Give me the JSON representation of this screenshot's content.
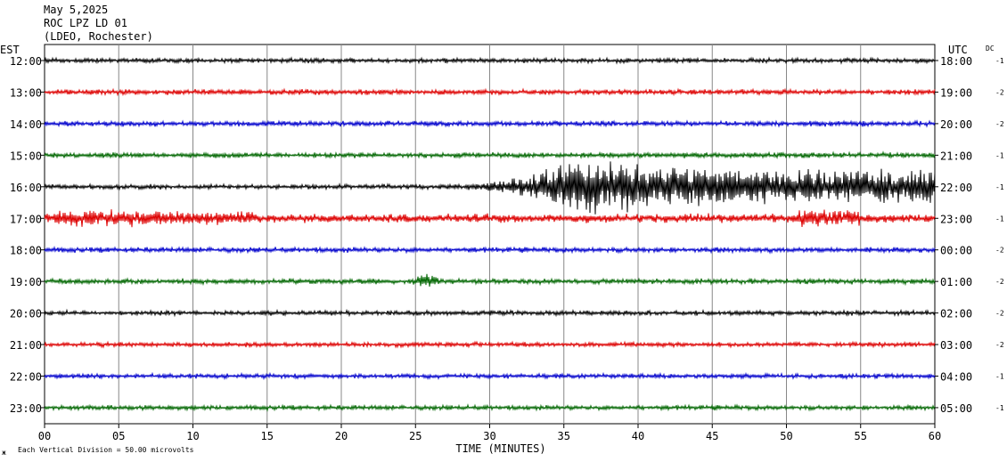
{
  "header": {
    "date": "May 5,2025",
    "station": "ROC LPZ LD 01",
    "network": "(LDEO, Rochester)"
  },
  "left_axis_title": "EST",
  "right_axis_title": "UTC",
  "dc_title": "DC",
  "footer": {
    "scale_note": "Each Vertical Division =   50.00 microvolts",
    "corner_mark": "ж"
  },
  "chart_data": {
    "type": "line",
    "xlabel": "TIME (MINUTES)",
    "xlim": [
      0,
      60
    ],
    "x_ticks": [
      0,
      5,
      10,
      15,
      20,
      25,
      30,
      35,
      40,
      45,
      50,
      55,
      60
    ],
    "x_tick_labels": [
      "00",
      "05",
      "10",
      "15",
      "20",
      "25",
      "30",
      "35",
      "40",
      "45",
      "50",
      "55",
      "60"
    ],
    "vertical_grid": true,
    "trace_colors": [
      "#000000",
      "#dd0000",
      "#0000cc",
      "#006600"
    ],
    "rows": [
      {
        "est": "12:00",
        "utc": "18:00",
        "dc": "-1",
        "color": "#000000",
        "amp": 1.6
      },
      {
        "est": "13:00",
        "utc": "19:00",
        "dc": "-2",
        "color": "#dd0000",
        "amp": 1.8
      },
      {
        "est": "14:00",
        "utc": "20:00",
        "dc": "-2",
        "color": "#0000cc",
        "amp": 1.8
      },
      {
        "est": "15:00",
        "utc": "21:00",
        "dc": "-1",
        "color": "#006600",
        "amp": 1.8
      },
      {
        "est": "16:00",
        "utc": "22:00",
        "dc": "-1",
        "color": "#000000",
        "amp": 1.6,
        "events": [
          {
            "start": 27,
            "peak": 36,
            "end": 60,
            "amp": 22
          }
        ]
      },
      {
        "est": "17:00",
        "utc": "23:00",
        "dc": "-1",
        "color": "#dd0000",
        "amp": 3.0,
        "events": [
          {
            "start": 0,
            "peak": 1,
            "end": 14,
            "amp": 4
          },
          {
            "start": 50,
            "peak": 51,
            "end": 55,
            "amp": 4
          }
        ]
      },
      {
        "est": "18:00",
        "utc": "00:00",
        "dc": "-2",
        "color": "#0000cc",
        "amp": 1.8
      },
      {
        "est": "19:00",
        "utc": "01:00",
        "dc": "-2",
        "color": "#006600",
        "amp": 1.8,
        "events": [
          {
            "start": 24.5,
            "peak": 25.5,
            "end": 26.5,
            "amp": 4
          }
        ]
      },
      {
        "est": "20:00",
        "utc": "02:00",
        "dc": "-2",
        "color": "#000000",
        "amp": 1.6
      },
      {
        "est": "21:00",
        "utc": "03:00",
        "dc": "-2",
        "color": "#dd0000",
        "amp": 1.6
      },
      {
        "est": "22:00",
        "utc": "04:00",
        "dc": "-1",
        "color": "#0000cc",
        "amp": 1.6
      },
      {
        "est": "23:00",
        "utc": "05:00",
        "dc": "-1",
        "color": "#006600",
        "amp": 1.6
      }
    ]
  }
}
